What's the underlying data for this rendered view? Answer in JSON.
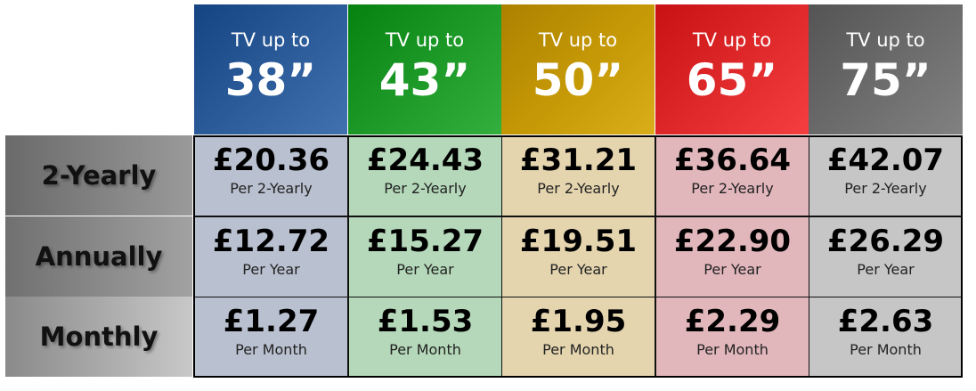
{
  "columns": [
    {
      "prefix": "TV up to",
      "size": "38”",
      "header_color": "#2e5d9b",
      "cell_color": "#b9c0cf"
    },
    {
      "prefix": "TV up to",
      "size": "43”",
      "header_color": "#1f9b2a",
      "cell_color": "#b4d8b9"
    },
    {
      "prefix": "TV up to",
      "size": "50”",
      "header_color": "#c69a06",
      "cell_color": "#e4d5af"
    },
    {
      "prefix": "TV up to",
      "size": "65”",
      "header_color": "#e02a2c",
      "cell_color": "#e2b7bb"
    },
    {
      "prefix": "TV up to",
      "size": "75”",
      "header_color": "#6d6d6d",
      "cell_color": "#c6c6c6"
    }
  ],
  "rows": [
    {
      "label": "2-Yearly",
      "unit": "Per 2-Yearly",
      "prices": [
        "£20.36",
        "£24.43",
        "£31.21",
        "£36.64",
        "£42.07"
      ]
    },
    {
      "label": "Annually",
      "unit": "Per Year",
      "prices": [
        "£12.72",
        "£15.27",
        "£19.51",
        "£22.90",
        "£26.29"
      ]
    },
    {
      "label": "Monthly",
      "unit": "Per Month",
      "prices": [
        "£1.27",
        "£1.53",
        "£1.95",
        "£2.29",
        "£2.63"
      ]
    }
  ]
}
